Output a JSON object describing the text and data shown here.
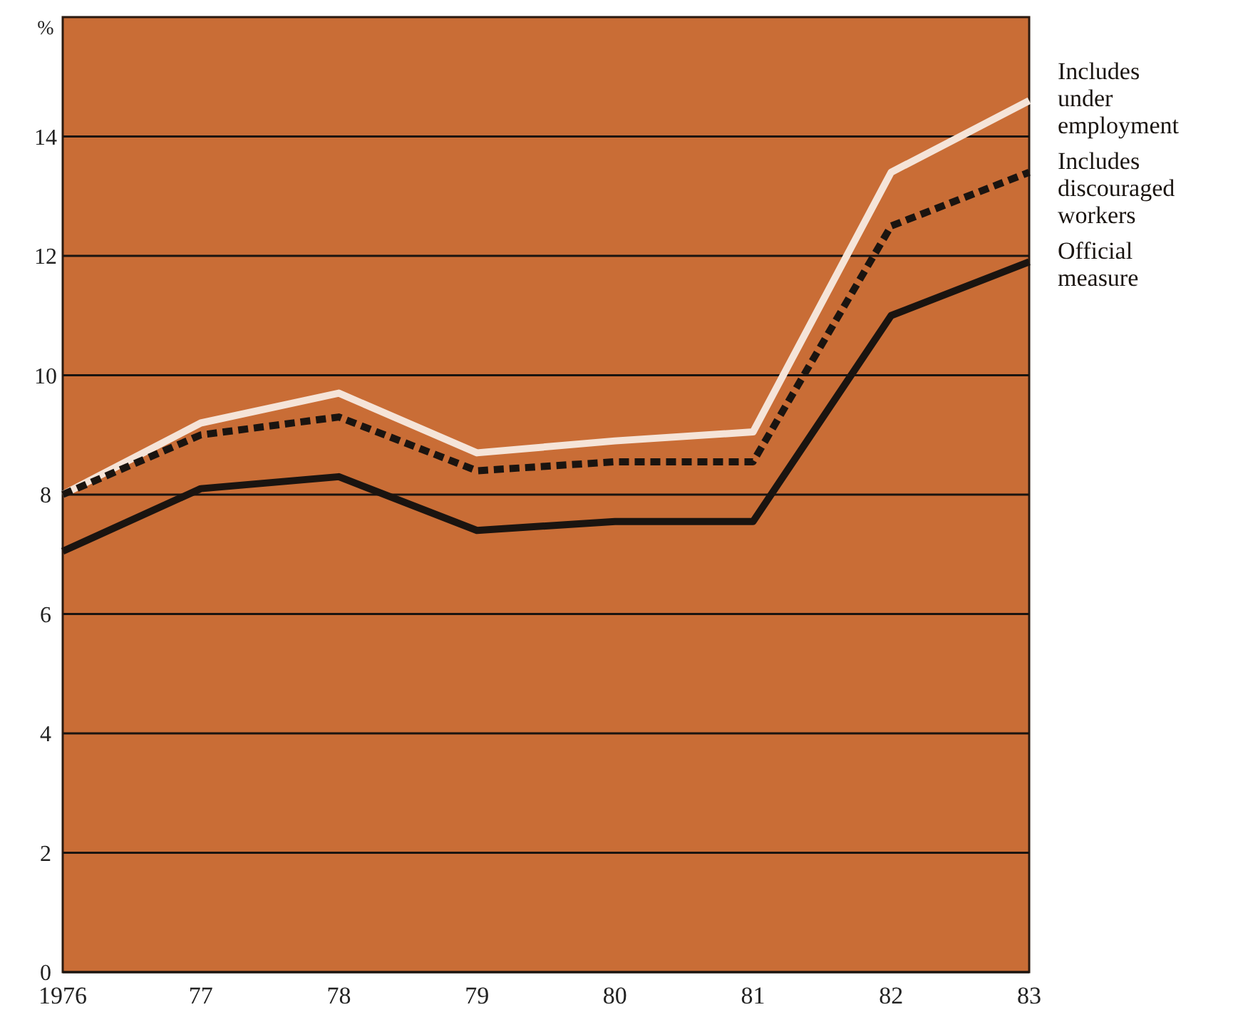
{
  "chart_data": {
    "type": "line",
    "ylabel": "%",
    "categories": [
      "1976",
      "77",
      "78",
      "79",
      "80",
      "81",
      "82",
      "83"
    ],
    "ylim": [
      0,
      16
    ],
    "yticks": [
      0,
      2,
      4,
      6,
      8,
      10,
      12,
      14
    ],
    "grid": "y",
    "legend": "right",
    "series": [
      {
        "name": "Includes under employment",
        "color": "#f5e4d8",
        "line_style": "solid",
        "values": [
          8.0,
          9.2,
          9.7,
          8.7,
          8.9,
          9.05,
          13.4,
          14.6
        ]
      },
      {
        "name": "Includes discouraged workers",
        "color": "#1a1410",
        "line_style": "dashed",
        "values": [
          8.0,
          9.0,
          9.3,
          8.4,
          8.55,
          8.55,
          12.5,
          13.4
        ]
      },
      {
        "name": "Official measure",
        "color": "#1a1410",
        "line_style": "solid",
        "values": [
          7.05,
          8.1,
          8.3,
          7.4,
          7.55,
          7.55,
          11.0,
          11.9
        ]
      }
    ]
  }
}
